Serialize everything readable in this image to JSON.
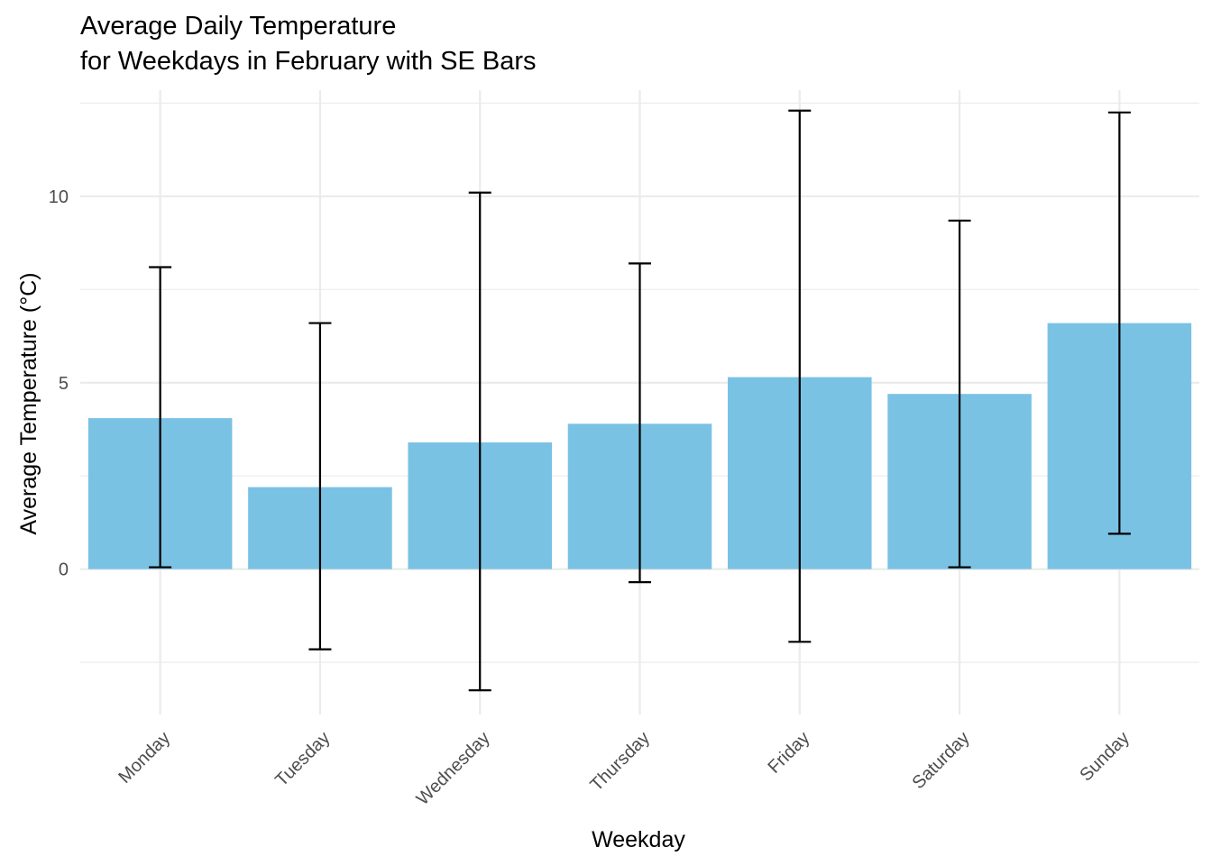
{
  "chart_data": {
    "type": "bar",
    "title_lines": [
      "Average Daily Temperature",
      "for Weekdays in February with SE Bars"
    ],
    "xlabel": "Weekday",
    "ylabel": "Average Temperature (°C)",
    "categories": [
      "Monday",
      "Tuesday",
      "Wednesday",
      "Thursday",
      "Friday",
      "Saturday",
      "Sunday"
    ],
    "values": [
      4.05,
      2.2,
      3.4,
      3.9,
      5.15,
      4.7,
      6.6
    ],
    "error_low": [
      0.05,
      -2.15,
      -3.25,
      -0.35,
      -1.95,
      0.05,
      0.95
    ],
    "error_high": [
      8.1,
      6.6,
      10.1,
      8.2,
      12.3,
      9.35,
      12.25
    ],
    "ylim": [
      -3.9,
      12.85
    ],
    "y_ticks": [
      0,
      5,
      10
    ],
    "y_minor_ticks": [
      -2.5,
      2.5,
      7.5,
      12.5
    ],
    "grid": true,
    "legend": "none",
    "colors": {
      "bar": "#7ac2e4",
      "error_bar": "#000000",
      "grid": "#ebebeb"
    }
  }
}
